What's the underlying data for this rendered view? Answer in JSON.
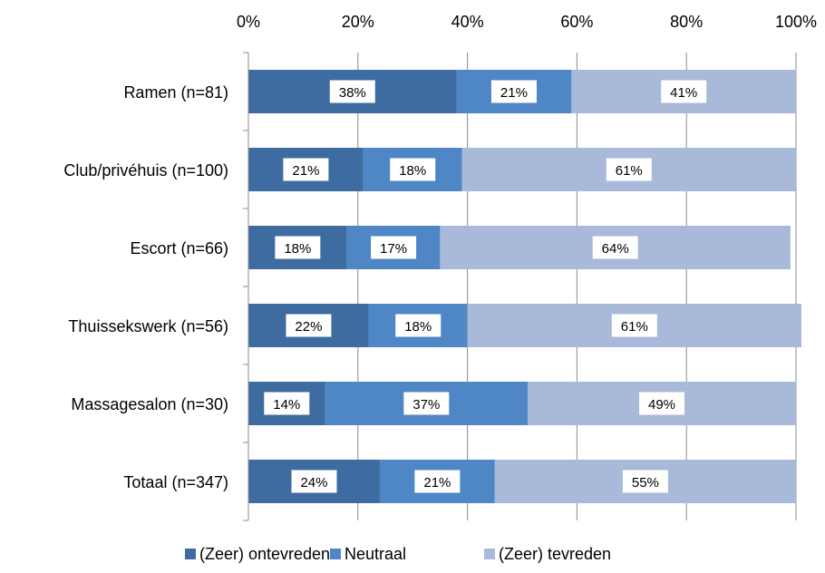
{
  "chart_data": {
    "type": "bar",
    "orientation": "horizontal",
    "stacked": true,
    "categories": [
      "Ramen (n=81)",
      "Club/privéhuis (n=100)",
      "Escort (n=66)",
      "Thuissekswerk (n=56)",
      "Massagesalon (n=30)",
      "Totaal (n=347)"
    ],
    "series": [
      {
        "name": "(Zeer) ontevreden",
        "values": [
          38,
          21,
          18,
          22,
          14,
          24
        ],
        "color": "#3e6ca0"
      },
      {
        "name": "Neutraal",
        "values": [
          21,
          18,
          17,
          18,
          37,
          21
        ],
        "color": "#4f86c6"
      },
      {
        "name": "(Zeer)  tevreden",
        "values": [
          41,
          61,
          64,
          61,
          49,
          55
        ],
        "color": "#a9b9d9"
      }
    ],
    "data_label_format": "{v}%",
    "x_ticks": [
      "0%",
      "20%",
      "40%",
      "60%",
      "80%",
      "100%"
    ],
    "xlim": [
      0,
      100
    ],
    "x_axis_position": "top",
    "grid": true,
    "legend_position": "bottom"
  }
}
